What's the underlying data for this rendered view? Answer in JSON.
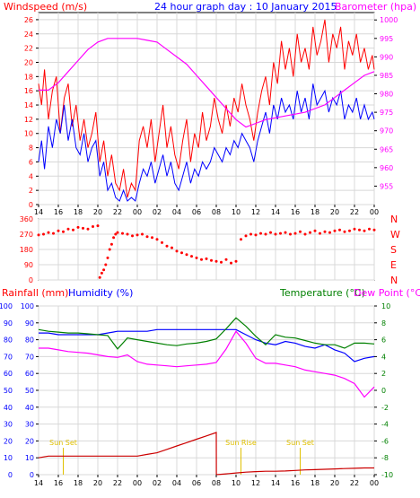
{
  "chart_data": [
    {
      "type": "line",
      "title": "24 hour graph day : 10 January 2015",
      "ylabel_left": "Windspeed (m/s)",
      "ylabel_right": "Barometer (hpa)",
      "x_ticks": [
        "14",
        "16",
        "18",
        "20",
        "22",
        "00",
        "02",
        "04",
        "06",
        "08",
        "10",
        "12",
        "14",
        "16",
        "18",
        "20",
        "22",
        "00"
      ],
      "ylim_left": [
        0,
        27
      ],
      "y_ticks_left": [
        "0",
        "2",
        "4",
        "6",
        "8",
        "10",
        "12",
        "14",
        "16",
        "18",
        "20",
        "22",
        "24",
        "26"
      ],
      "ylim_right": [
        950,
        1002
      ],
      "y_ticks_right": [
        "955",
        "960",
        "965",
        "970",
        "975",
        "980",
        "985",
        "990",
        "995",
        "1000"
      ],
      "grid": true,
      "colors": {
        "gust": "#ff0000",
        "avg": "#0000ff",
        "barometer": "#ff00ff",
        "title": "#0000ff"
      },
      "series": [
        {
          "key": "gust",
          "hours": [
            0,
            0.3,
            0.6,
            1,
            1.4,
            1.8,
            2.2,
            2.6,
            3,
            3.4,
            3.8,
            4.2,
            4.6,
            5,
            5.4,
            5.8,
            6.2,
            6.6,
            7,
            7.4,
            7.8,
            8.2,
            8.6,
            9,
            9.4,
            9.8,
            10.2,
            10.6,
            11,
            11.4,
            11.8,
            12.2,
            12.6,
            13,
            13.4,
            13.8,
            14.2,
            14.6,
            15,
            15.4,
            15.8,
            16.2,
            16.6,
            17,
            17.4,
            17.8,
            18.2,
            18.6,
            19,
            19.4,
            19.8,
            20.2,
            20.6,
            21,
            21.4,
            21.8,
            22.2,
            22.6,
            23,
            23.4,
            23.8,
            24.2,
            24.6,
            25,
            25.4,
            25.8,
            26.2,
            26.6,
            27,
            27.4,
            27.8,
            28.2,
            28.6,
            29,
            29.4,
            29.8,
            30.2,
            30.6,
            31,
            31.4,
            31.8,
            32.2,
            32.6,
            33,
            33.4,
            33.8,
            34
          ],
          "values": [
            17,
            14,
            19,
            12,
            16,
            18,
            10,
            15,
            17,
            11,
            14,
            9,
            12,
            8,
            10,
            13,
            6,
            9,
            4,
            7,
            3,
            2,
            5,
            1,
            3,
            2,
            9,
            11,
            8,
            12,
            6,
            10,
            14,
            8,
            11,
            7,
            5,
            9,
            12,
            6,
            10,
            8,
            13,
            9,
            11,
            15,
            12,
            10,
            14,
            11,
            15,
            13,
            17,
            14,
            12,
            9,
            13,
            16,
            18,
            14,
            20,
            17,
            23,
            19,
            22,
            18,
            24,
            20,
            22,
            19,
            25,
            21,
            23,
            26,
            20,
            24,
            22,
            25,
            19,
            23,
            21,
            24,
            20,
            22,
            19,
            21,
            19
          ]
        },
        {
          "key": "avg",
          "hours": [
            0,
            0.3,
            0.6,
            1,
            1.4,
            1.8,
            2.2,
            2.6,
            3,
            3.4,
            3.8,
            4.2,
            4.6,
            5,
            5.4,
            5.8,
            6.2,
            6.6,
            7,
            7.4,
            7.8,
            8.2,
            8.6,
            9,
            9.4,
            9.8,
            10.2,
            10.6,
            11,
            11.4,
            11.8,
            12.2,
            12.6,
            13,
            13.4,
            13.8,
            14.2,
            14.6,
            15,
            15.4,
            15.8,
            16.2,
            16.6,
            17,
            17.4,
            17.8,
            18.2,
            18.6,
            19,
            19.4,
            19.8,
            20.2,
            20.6,
            21,
            21.4,
            21.8,
            22.2,
            22.6,
            23,
            23.4,
            23.8,
            24.2,
            24.6,
            25,
            25.4,
            25.8,
            26.2,
            26.6,
            27,
            27.4,
            27.8,
            28.2,
            28.6,
            29,
            29.4,
            29.8,
            30.2,
            30.6,
            31,
            31.4,
            31.8,
            32.2,
            32.6,
            33,
            33.4,
            33.8,
            34
          ],
          "values": [
            6,
            9,
            5,
            11,
            8,
            12,
            10,
            14,
            9,
            12,
            8,
            7,
            10,
            6,
            8,
            9,
            4,
            6,
            2,
            3,
            1,
            0.5,
            2,
            0.5,
            1,
            0.5,
            3,
            5,
            4,
            6,
            3,
            5,
            7,
            4,
            6,
            3,
            2,
            4,
            6,
            3,
            5,
            4,
            6,
            5,
            6,
            8,
            7,
            6,
            8,
            7,
            9,
            8,
            10,
            9,
            8,
            6,
            9,
            11,
            13,
            10,
            14,
            12,
            15,
            13,
            14,
            12,
            16,
            13,
            15,
            12,
            17,
            14,
            15,
            16,
            13,
            15,
            14,
            16,
            12,
            14,
            13,
            15,
            12,
            14,
            12,
            13,
            12
          ]
        },
        {
          "key": "barometer",
          "hours": [
            0,
            1,
            2,
            3,
            4,
            5,
            6,
            7,
            8,
            9,
            10,
            11,
            12,
            13,
            14,
            15,
            16,
            17,
            18,
            19,
            20,
            21,
            22,
            23,
            24,
            25,
            26,
            27,
            28,
            29,
            30,
            31,
            32,
            33,
            34
          ],
          "values": [
            981,
            981,
            983,
            986,
            989,
            992,
            994,
            995,
            995,
            995,
            995,
            994.5,
            994,
            992,
            990,
            988,
            985,
            982,
            979,
            976,
            973,
            971,
            972,
            973,
            973.5,
            974,
            974.5,
            975,
            976,
            977,
            979,
            981,
            983,
            985,
            986
          ]
        }
      ]
    },
    {
      "type": "scatter",
      "ylabel": "Wind direction",
      "ylim": [
        0,
        360
      ],
      "y_ticks": [
        "0",
        "90",
        "180",
        "270",
        "360"
      ],
      "compass_labels": [
        "N",
        "W",
        "S",
        "E",
        "N"
      ],
      "x_ticks": [
        "14",
        "16",
        "18",
        "20",
        "22",
        "00",
        "02",
        "04",
        "06",
        "08",
        "10",
        "12",
        "14",
        "16",
        "18",
        "20",
        "22",
        "00"
      ],
      "color": "#ff0000",
      "hours": [
        0,
        0.5,
        1,
        1.5,
        2,
        2.5,
        3,
        3.5,
        4,
        4.5,
        5,
        5.5,
        6,
        6.2,
        6.4,
        6.6,
        6.8,
        7,
        7.2,
        7.4,
        7.6,
        7.8,
        8,
        8.5,
        9,
        9.5,
        10,
        10.5,
        11,
        11.5,
        12,
        12.5,
        13,
        13.5,
        14,
        14.5,
        15,
        15.5,
        16,
        16.5,
        17,
        17.5,
        18,
        18.5,
        19,
        19.5,
        20,
        20.5,
        21,
        21.5,
        22,
        22.5,
        23,
        23.5,
        24,
        24.5,
        25,
        25.5,
        26,
        26.5,
        27,
        27.5,
        28,
        28.5,
        29,
        29.5,
        30,
        30.5,
        31,
        31.5,
        32,
        32.5,
        33,
        33.5,
        34
      ],
      "values": [
        265,
        270,
        280,
        275,
        290,
        285,
        300,
        295,
        310,
        305,
        300,
        315,
        320,
        15,
        40,
        60,
        90,
        130,
        180,
        210,
        250,
        270,
        280,
        275,
        270,
        260,
        265,
        270,
        255,
        250,
        240,
        220,
        200,
        190,
        170,
        160,
        150,
        140,
        130,
        120,
        125,
        115,
        110,
        105,
        120,
        100,
        110,
        240,
        260,
        270,
        265,
        275,
        270,
        280,
        270,
        275,
        280,
        270,
        275,
        285,
        270,
        280,
        290,
        275,
        285,
        280,
        290,
        295,
        285,
        290,
        300,
        295,
        290,
        300,
        295
      ]
    },
    {
      "type": "line",
      "ylabel_left": "Rainfall (mm)",
      "ylabel_left2": "Humidity (%)",
      "ylabel_right": "Temperature (°C)",
      "ylabel_right2": "Dew Point (°C)",
      "x_ticks": [
        "14",
        "16",
        "18",
        "20",
        "22",
        "00",
        "02",
        "04",
        "06",
        "08",
        "10",
        "12",
        "14",
        "16",
        "18",
        "20",
        "22",
        "00"
      ],
      "ylim_humidity": [
        0,
        100
      ],
      "y_ticks_left_rain": [
        "0",
        "10",
        "20",
        "30",
        "40",
        "50",
        "60",
        "70",
        "80",
        "90",
        "100"
      ],
      "y_ticks_left_hum": [
        "0",
        "10",
        "20",
        "30",
        "40",
        "50",
        "60",
        "70",
        "80",
        "90",
        "100"
      ],
      "ylim_temp": [
        -10,
        10
      ],
      "y_ticks_right": [
        "-10",
        "-8",
        "-6",
        "-4",
        "-2",
        "0",
        "2",
        "4",
        "6",
        "8",
        "10"
      ],
      "annotations": [
        {
          "text": "Sun Set",
          "hour": 2.5
        },
        {
          "text": "Sun Rise",
          "hour": 20.5
        },
        {
          "text": "Sun Set",
          "hour": 26.5
        }
      ],
      "colors": {
        "rain": "#cc0000",
        "humidity": "#0000ff",
        "temperature": "#008000",
        "dewpoint": "#ff00ff",
        "sun": "#e0c000",
        "left_axis_title_rain": "#ff0000",
        "left_axis_title_hum": "#0000ff",
        "right_axis_title_temp": "#008000",
        "right_axis_title_dew": "#ff00ff"
      },
      "series": [
        {
          "key": "rain",
          "hours": [
            0,
            1,
            2,
            3,
            4,
            5,
            6,
            7,
            8,
            9,
            10,
            11,
            12,
            13,
            14,
            15,
            16,
            17,
            18,
            18.01,
            19,
            20,
            21,
            22,
            23,
            24,
            25,
            26,
            27,
            28,
            29,
            30,
            31,
            32,
            33,
            34
          ],
          "values": [
            10,
            11,
            11,
            11,
            11,
            11,
            11,
            11,
            11,
            11,
            11,
            12,
            13,
            15,
            17,
            19,
            21,
            23,
            25,
            0,
            0.5,
            1,
            1.5,
            1.8,
            2,
            2,
            2.2,
            2.5,
            2.8,
            3,
            3.2,
            3.4,
            3.6,
            3.8,
            4,
            4
          ]
        },
        {
          "key": "humidity",
          "hours": [
            0,
            1,
            2,
            3,
            4,
            5,
            6,
            7,
            8,
            9,
            10,
            11,
            12,
            13,
            14,
            15,
            16,
            17,
            18,
            19,
            20,
            21,
            22,
            23,
            24,
            25,
            26,
            27,
            28,
            29,
            30,
            31,
            32,
            33,
            34
          ],
          "values": [
            84,
            84,
            83,
            83,
            83,
            83,
            83,
            84,
            85,
            85,
            85,
            85,
            86,
            86,
            86,
            86,
            86,
            86,
            86,
            86,
            86,
            83,
            80,
            78,
            77,
            79,
            78,
            76,
            75,
            77,
            74,
            72,
            67,
            69,
            70
          ]
        },
        {
          "key": "temperature",
          "hours": [
            0,
            1,
            2,
            3,
            4,
            5,
            6,
            7,
            8,
            9,
            10,
            11,
            12,
            13,
            14,
            15,
            16,
            17,
            18,
            19,
            20,
            21,
            22,
            23,
            24,
            25,
            26,
            27,
            28,
            29,
            30,
            31,
            32,
            33,
            34
          ],
          "values": [
            7.2,
            7,
            6.9,
            6.8,
            6.8,
            6.7,
            6.6,
            6.5,
            4.9,
            6.2,
            6,
            5.8,
            5.6,
            5.4,
            5.3,
            5.5,
            5.6,
            5.8,
            6.1,
            7.3,
            8.6,
            7.6,
            6.4,
            5.4,
            6.6,
            6.3,
            6.2,
            5.9,
            5.6,
            5.4,
            5.4,
            5,
            5.6,
            5.6,
            5.5
          ]
        },
        {
          "key": "dewpoint",
          "hours": [
            0,
            1,
            2,
            3,
            4,
            5,
            6,
            7,
            8,
            9,
            10,
            11,
            12,
            13,
            14,
            15,
            16,
            17,
            18,
            19,
            20,
            21,
            22,
            23,
            24,
            25,
            26,
            27,
            28,
            29,
            30,
            31,
            32,
            33,
            34
          ],
          "values": [
            5,
            5,
            4.8,
            4.6,
            4.5,
            4.4,
            4.2,
            4,
            3.9,
            4.2,
            3.4,
            3.1,
            3,
            2.9,
            2.8,
            2.9,
            3,
            3.1,
            3.3,
            4.9,
            7,
            5.6,
            3.8,
            3.2,
            3.2,
            3,
            2.8,
            2.4,
            2.2,
            2,
            1.8,
            1.4,
            0.8,
            -0.8,
            0.4
          ]
        }
      ]
    }
  ]
}
